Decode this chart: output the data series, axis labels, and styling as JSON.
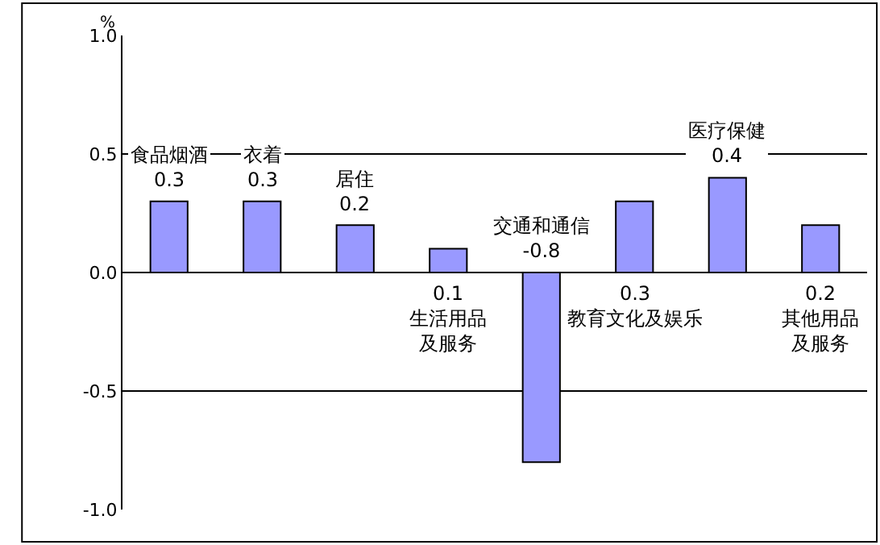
{
  "chart_data": {
    "type": "bar",
    "ylabel": "%",
    "categories": [
      "食品烟酒",
      "衣着",
      "居住",
      "生活用品及服务",
      "交通和通信",
      "教育文化及娱乐",
      "医疗保健",
      "其他用品及服务"
    ],
    "values": [
      0.3,
      0.3,
      0.2,
      0.1,
      -0.8,
      0.3,
      0.4,
      0.2
    ],
    "color": "#9999ff",
    "ylim": [
      -1.0,
      1.0
    ],
    "yticks": [
      {
        "value": -1.0,
        "label": "-1.0"
      },
      {
        "value": -0.5,
        "label": "-0.5"
      },
      {
        "value": 0,
        "label": "0.0"
      },
      {
        "value": 0.5,
        "label": "0.5"
      },
      {
        "value": 1.0,
        "label": "1.0"
      }
    ],
    "grid": "y",
    "data_labels": true,
    "tick_labels": "y"
  }
}
